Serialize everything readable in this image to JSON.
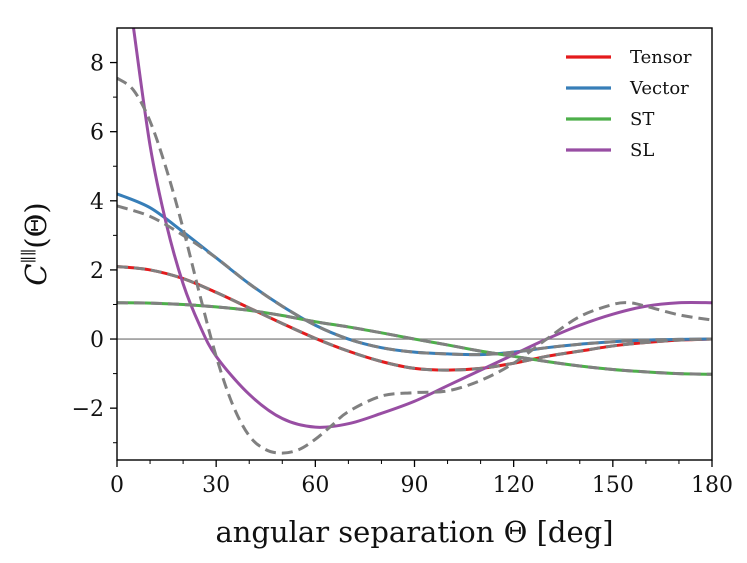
{
  "chart_data": {
    "type": "line",
    "title": "",
    "xlabel": "angular separation Θ [deg]",
    "ylabel_main": "C",
    "ylabel_sup": "∥∥",
    "ylabel_arg": "(Θ)",
    "xlim": [
      0,
      180
    ],
    "ylim": [
      -3.5,
      9
    ],
    "xticks": [
      0,
      30,
      60,
      90,
      120,
      150,
      180
    ],
    "xtick_labels": [
      "0",
      "30",
      "60",
      "90",
      "120",
      "150",
      "180"
    ],
    "yticks": [
      -2,
      0,
      2,
      4,
      6,
      8
    ],
    "ytick_labels": [
      "−2",
      "0",
      "2",
      "4",
      "6",
      "8"
    ],
    "zero_line": true,
    "legend_position": "top-right",
    "series": [
      {
        "name": "Tensor",
        "color": "#e41a1c",
        "x": [
          0,
          10,
          20,
          30,
          40,
          50,
          60,
          70,
          80,
          90,
          100,
          110,
          120,
          130,
          140,
          150,
          160,
          170,
          180
        ],
        "y": [
          2.1,
          2.0,
          1.75,
          1.35,
          0.9,
          0.45,
          0.02,
          -0.35,
          -0.65,
          -0.85,
          -0.9,
          -0.85,
          -0.7,
          -0.5,
          -0.35,
          -0.2,
          -0.1,
          -0.03,
          0.0
        ]
      },
      {
        "name": "Vector",
        "color": "#377eb8",
        "x": [
          0,
          10,
          20,
          30,
          40,
          50,
          60,
          70,
          80,
          90,
          100,
          110,
          120,
          130,
          140,
          150,
          160,
          170,
          180
        ],
        "y": [
          4.2,
          3.8,
          3.1,
          2.35,
          1.6,
          0.95,
          0.4,
          0.0,
          -0.25,
          -0.38,
          -0.43,
          -0.45,
          -0.38,
          -0.25,
          -0.15,
          -0.08,
          -0.03,
          -0.01,
          0.0
        ]
      },
      {
        "name": "ST",
        "color": "#4daf4a",
        "x": [
          0,
          10,
          20,
          30,
          40,
          50,
          60,
          70,
          80,
          90,
          100,
          110,
          120,
          130,
          140,
          150,
          160,
          170,
          180
        ],
        "y": [
          1.05,
          1.04,
          1.0,
          0.93,
          0.83,
          0.68,
          0.5,
          0.35,
          0.18,
          0.0,
          -0.17,
          -0.35,
          -0.5,
          -0.65,
          -0.78,
          -0.88,
          -0.95,
          -1.0,
          -1.02
        ]
      },
      {
        "name": "SL",
        "color": "#984ea3",
        "x": [
          5,
          10,
          15,
          20,
          25,
          30,
          40,
          50,
          60,
          70,
          80,
          90,
          100,
          110,
          120,
          130,
          140,
          150,
          160,
          170,
          180
        ],
        "y": [
          9.0,
          5.6,
          3.3,
          1.6,
          0.4,
          -0.5,
          -1.6,
          -2.3,
          -2.55,
          -2.45,
          -2.15,
          -1.8,
          -1.35,
          -0.9,
          -0.45,
          0.0,
          0.4,
          0.72,
          0.95,
          1.05,
          1.05
        ]
      }
    ],
    "reference_curves": [
      {
        "name": "Tensor reference",
        "color": "#808080",
        "style": "dashed",
        "x": [
          0,
          10,
          20,
          30,
          40,
          50,
          60,
          70,
          80,
          90,
          100,
          110,
          120,
          130,
          140,
          150,
          160,
          170,
          180
        ],
        "y": [
          2.1,
          2.0,
          1.75,
          1.35,
          0.9,
          0.45,
          0.02,
          -0.35,
          -0.65,
          -0.85,
          -0.9,
          -0.85,
          -0.7,
          -0.5,
          -0.35,
          -0.2,
          -0.1,
          -0.03,
          0.0
        ]
      },
      {
        "name": "Vector reference",
        "color": "#808080",
        "style": "dashed",
        "x": [
          0,
          10,
          20,
          30,
          40,
          50,
          60,
          70,
          80,
          90,
          100,
          110,
          120,
          130,
          140,
          150,
          160,
          170,
          180
        ],
        "y": [
          3.85,
          3.55,
          3.0,
          2.35,
          1.6,
          0.95,
          0.4,
          0.0,
          -0.25,
          -0.38,
          -0.43,
          -0.45,
          -0.38,
          -0.25,
          -0.15,
          -0.08,
          -0.03,
          -0.01,
          0.0
        ]
      },
      {
        "name": "ST reference",
        "color": "#808080",
        "style": "dashed",
        "x": [
          0,
          10,
          20,
          30,
          40,
          50,
          60,
          70,
          80,
          90,
          100,
          110,
          120,
          130,
          140,
          150,
          160,
          170,
          180
        ],
        "y": [
          1.05,
          1.04,
          1.0,
          0.93,
          0.83,
          0.68,
          0.5,
          0.35,
          0.18,
          0.0,
          -0.17,
          -0.35,
          -0.5,
          -0.65,
          -0.78,
          -0.88,
          -0.95,
          -1.0,
          -1.02
        ]
      },
      {
        "name": "SL reference",
        "color": "#808080",
        "style": "dashed",
        "x": [
          0,
          5,
          10,
          15,
          20,
          25,
          30,
          35,
          40,
          45,
          50,
          55,
          60,
          65,
          70,
          80,
          90,
          100,
          110,
          120,
          130,
          140,
          150,
          155,
          160,
          170,
          180
        ],
        "y": [
          7.55,
          7.2,
          6.3,
          4.9,
          3.2,
          1.3,
          -0.5,
          -1.9,
          -2.8,
          -3.2,
          -3.3,
          -3.2,
          -2.9,
          -2.5,
          -2.1,
          -1.65,
          -1.55,
          -1.5,
          -1.2,
          -0.7,
          0.0,
          0.65,
          1.0,
          1.05,
          0.95,
          0.7,
          0.55
        ]
      }
    ]
  }
}
